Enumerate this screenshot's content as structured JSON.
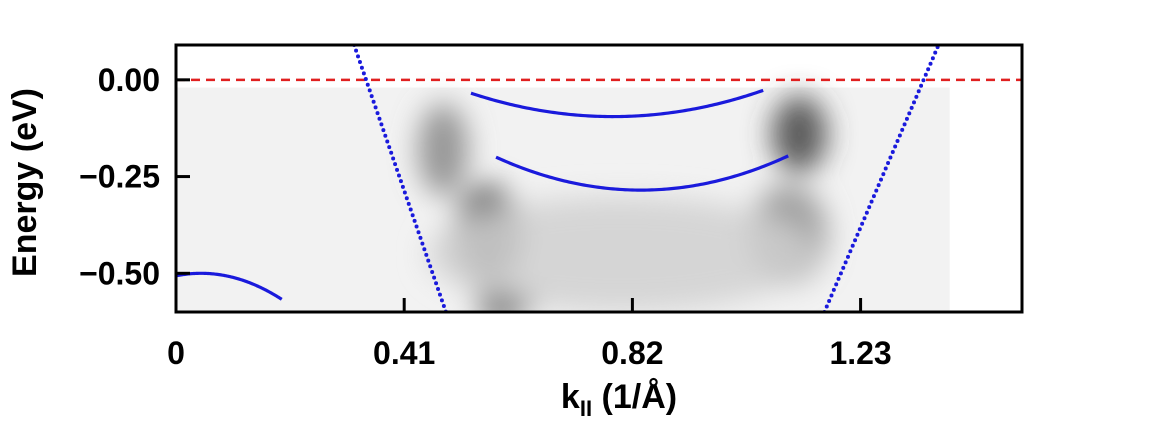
{
  "chart_data": {
    "type": "line",
    "title": "",
    "xlabel": "k",
    "xlabel_sub": "II",
    "xlabel_unit": " (1/Å)",
    "ylabel": "Energy (eV)",
    "xlim": [
      0,
      1.52
    ],
    "ylim": [
      -0.6,
      0.09
    ],
    "xticks": [
      0,
      0.41,
      0.82,
      1.23
    ],
    "xtick_labels": [
      "0",
      "0.41",
      "0.82",
      "1.23"
    ],
    "yticks": [
      0.0,
      -0.25,
      -0.5
    ],
    "ytick_labels": [
      "0.00",
      "−0.25",
      "−0.50"
    ],
    "grid": false,
    "legend": "none",
    "fermi_level": {
      "y": 0.0,
      "style": "dashed",
      "color": "#e02020"
    },
    "background": {
      "type": "heatmap",
      "colormap": "grayscale",
      "x_range": [
        0.0,
        1.39
      ],
      "y_range": [
        -0.6,
        -0.02
      ],
      "note_blobs": [
        {
          "x": 0.48,
          "y": -0.18,
          "sx": 0.045,
          "sy": 0.12,
          "i": 0.45
        },
        {
          "x": 0.56,
          "y": -0.4,
          "sx": 0.06,
          "sy": 0.13,
          "i": 0.7
        },
        {
          "x": 0.59,
          "y": -0.58,
          "sx": 0.05,
          "sy": 0.04,
          "i": 1.0
        },
        {
          "x": 1.12,
          "y": -0.14,
          "sx": 0.05,
          "sy": 0.1,
          "i": 0.75
        },
        {
          "x": 1.1,
          "y": -0.4,
          "sx": 0.07,
          "sy": 0.13,
          "i": 0.4
        },
        {
          "x": 0.8,
          "y": -0.45,
          "sx": 0.35,
          "sy": 0.15,
          "i": 0.12
        }
      ]
    },
    "series": [
      {
        "style": "dotted",
        "color": "#1a1adc",
        "x": [
          0.32,
          0.485
        ],
        "y": [
          0.09,
          -0.6
        ]
      },
      {
        "style": "dotted",
        "color": "#1a1adc",
        "x": [
          1.165,
          1.37
        ],
        "y": [
          -0.6,
          0.09
        ]
      },
      {
        "style": "solid",
        "color": "#1a1adc",
        "parabola": {
          "x0": 0.785,
          "e0": -0.095,
          "a": 0.93,
          "xmin": 0.53,
          "xmax": 1.055
        }
      },
      {
        "style": "solid",
        "color": "#1a1adc",
        "parabola": {
          "x0": 0.835,
          "e0": -0.285,
          "a": 1.26,
          "xmin": 0.575,
          "xmax": 1.1
        }
      },
      {
        "style": "solid",
        "color": "#1a1adc",
        "parabola": {
          "x0": 0.045,
          "e0": -0.5,
          "a": -3.2,
          "xmin": 0.0,
          "xmax": 0.19
        }
      }
    ]
  }
}
